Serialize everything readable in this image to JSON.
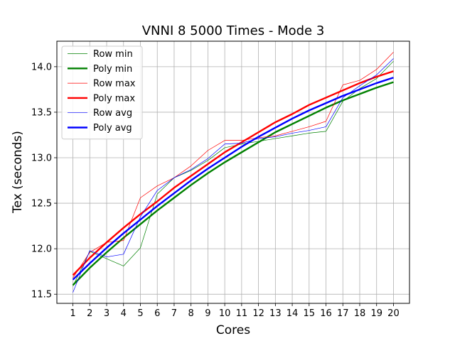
{
  "chart_data": {
    "type": "line",
    "title": "VNNI 8 5000 Times - Mode 3",
    "xlabel": "Cores",
    "ylabel": "Tex (seconds)",
    "x": [
      1,
      2,
      3,
      4,
      5,
      6,
      7,
      8,
      9,
      10,
      11,
      12,
      13,
      14,
      15,
      16,
      17,
      18,
      19,
      20
    ],
    "xlim": [
      0.05,
      20.95
    ],
    "ylim": [
      11.4,
      14.28
    ],
    "yticks": [
      11.5,
      12.0,
      12.5,
      13.0,
      13.5,
      14.0
    ],
    "ytick_labels": [
      "11.5",
      "12.0",
      "12.5",
      "13.0",
      "13.5",
      "14.0"
    ],
    "xtick_labels": [
      "1",
      "2",
      "3",
      "4",
      "5",
      "6",
      "7",
      "8",
      "9",
      "10",
      "11",
      "12",
      "13",
      "14",
      "15",
      "16",
      "17",
      "18",
      "19",
      "20"
    ],
    "grid": true,
    "legend_position": "top-left",
    "series": [
      {
        "name": "Row min",
        "color": "#008000",
        "width": "thin",
        "values": [
          11.59,
          11.97,
          11.89,
          11.81,
          12.01,
          12.6,
          12.78,
          12.86,
          12.97,
          13.11,
          13.15,
          13.18,
          13.21,
          13.24,
          13.27,
          13.29,
          13.62,
          13.76,
          13.87,
          14.06
        ]
      },
      {
        "name": "Poly min",
        "color": "#008000",
        "width": "thick",
        "values": [
          11.6,
          11.79,
          11.96,
          12.12,
          12.27,
          12.42,
          12.56,
          12.7,
          12.83,
          12.95,
          13.06,
          13.17,
          13.28,
          13.37,
          13.46,
          13.55,
          13.63,
          13.7,
          13.77,
          13.83
        ]
      },
      {
        "name": "Row max",
        "color": "#ff0000",
        "width": "thin",
        "values": [
          11.68,
          11.96,
          12.07,
          12.09,
          12.56,
          12.69,
          12.78,
          12.91,
          13.08,
          13.19,
          13.19,
          13.22,
          13.24,
          13.29,
          13.34,
          13.4,
          13.8,
          13.85,
          13.97,
          14.16
        ]
      },
      {
        "name": "Poly max",
        "color": "#ff0000",
        "width": "thick",
        "values": [
          11.71,
          11.9,
          12.07,
          12.23,
          12.38,
          12.52,
          12.67,
          12.8,
          12.93,
          13.06,
          13.17,
          13.28,
          13.39,
          13.48,
          13.58,
          13.66,
          13.74,
          13.82,
          13.89,
          13.95
        ]
      },
      {
        "name": "Row avg",
        "color": "#0000ff",
        "width": "thin",
        "values": [
          11.52,
          11.98,
          11.91,
          11.94,
          12.35,
          12.64,
          12.78,
          12.87,
          12.99,
          13.15,
          13.16,
          13.21,
          13.23,
          13.27,
          13.3,
          13.34,
          13.66,
          13.79,
          13.91,
          14.09
        ]
      },
      {
        "name": "Poly avg",
        "color": "#0000ff",
        "width": "thick",
        "values": [
          11.66,
          11.84,
          12.01,
          12.17,
          12.32,
          12.47,
          12.61,
          12.75,
          12.88,
          13.0,
          13.12,
          13.23,
          13.33,
          13.43,
          13.52,
          13.6,
          13.68,
          13.75,
          13.82,
          13.88
        ]
      }
    ]
  }
}
